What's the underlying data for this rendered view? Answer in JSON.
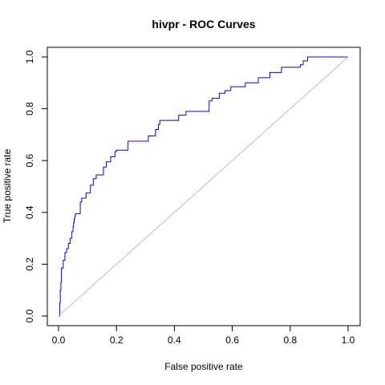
{
  "chart_data": {
    "type": "line",
    "title": "hivpr - ROC Curves",
    "xlabel": "False positive rate",
    "ylabel": "True positive rate",
    "xlim": [
      0,
      1
    ],
    "ylim": [
      0,
      1
    ],
    "x_ticks": [
      "0.0",
      "0.2",
      "0.4",
      "0.6",
      "0.8",
      "1.0"
    ],
    "y_ticks": [
      "0.0",
      "0.2",
      "0.4",
      "0.6",
      "0.8",
      "1.0"
    ],
    "grid": false,
    "legend": "none",
    "colors": {
      "roc": "#0000ff",
      "diagonal": "#bebebe",
      "frame": "#000000"
    },
    "series": [
      {
        "style": "step",
        "x": [
          0.0,
          0.004,
          0.004,
          0.006,
          0.006,
          0.008,
          0.008,
          0.01,
          0.01,
          0.016,
          0.016,
          0.022,
          0.022,
          0.028,
          0.028,
          0.034,
          0.034,
          0.04,
          0.04,
          0.046,
          0.046,
          0.05,
          0.05,
          0.052,
          0.052,
          0.054,
          0.054,
          0.056,
          0.056,
          0.058,
          0.058,
          0.075,
          0.075,
          0.08,
          0.08,
          0.095,
          0.095,
          0.11,
          0.11,
          0.12,
          0.12,
          0.13,
          0.13,
          0.155,
          0.155,
          0.165,
          0.165,
          0.18,
          0.18,
          0.195,
          0.195,
          0.2,
          0.2,
          0.24,
          0.24,
          0.31,
          0.31,
          0.335,
          0.335,
          0.345,
          0.345,
          0.35,
          0.35,
          0.415,
          0.415,
          0.44,
          0.44,
          0.52,
          0.52,
          0.53,
          0.53,
          0.555,
          0.555,
          0.575,
          0.575,
          0.595,
          0.595,
          0.645,
          0.645,
          0.69,
          0.69,
          0.73,
          0.73,
          0.77,
          0.77,
          0.835,
          0.835,
          0.845,
          0.845,
          0.86,
          0.86,
          1.0
        ],
        "y": [
          0.0,
          0.0,
          0.05,
          0.05,
          0.1,
          0.1,
          0.13,
          0.13,
          0.185,
          0.185,
          0.215,
          0.215,
          0.245,
          0.245,
          0.26,
          0.26,
          0.28,
          0.28,
          0.3,
          0.3,
          0.325,
          0.325,
          0.345,
          0.345,
          0.36,
          0.36,
          0.375,
          0.375,
          0.385,
          0.385,
          0.395,
          0.395,
          0.44,
          0.44,
          0.455,
          0.455,
          0.475,
          0.475,
          0.505,
          0.505,
          0.53,
          0.53,
          0.545,
          0.545,
          0.575,
          0.575,
          0.595,
          0.595,
          0.615,
          0.615,
          0.635,
          0.635,
          0.64,
          0.64,
          0.675,
          0.675,
          0.695,
          0.695,
          0.72,
          0.72,
          0.74,
          0.74,
          0.755,
          0.755,
          0.775,
          0.775,
          0.79,
          0.79,
          0.83,
          0.83,
          0.84,
          0.84,
          0.86,
          0.86,
          0.87,
          0.87,
          0.885,
          0.885,
          0.9,
          0.9,
          0.92,
          0.92,
          0.94,
          0.94,
          0.96,
          0.96,
          0.97,
          0.97,
          0.985,
          0.985,
          1.0,
          1.0
        ]
      },
      {
        "style": "reference-diagonal",
        "x": [
          0,
          1
        ],
        "y": [
          0,
          1
        ]
      }
    ]
  }
}
